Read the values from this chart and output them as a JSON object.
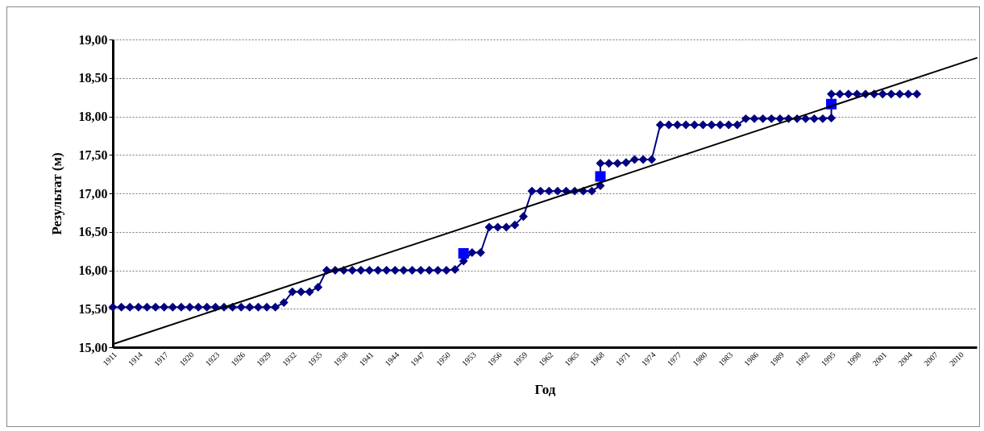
{
  "chart_data": {
    "type": "line",
    "xlabel": "Год",
    "ylabel": "Результат (м)",
    "xlim": [
      1911,
      2012
    ],
    "xticks": [
      1911,
      1914,
      1917,
      1920,
      1923,
      1926,
      1929,
      1932,
      1935,
      1938,
      1941,
      1944,
      1947,
      1950,
      1953,
      1956,
      1959,
      1962,
      1965,
      1968,
      1971,
      1974,
      1977,
      1980,
      1983,
      1986,
      1989,
      1992,
      1995,
      1998,
      2001,
      2004,
      2007,
      2010
    ],
    "ylim": [
      15,
      19
    ],
    "yticks": [
      {
        "value": 15,
        "label": "15,00"
      },
      {
        "value": 15.5,
        "label": "15,50"
      },
      {
        "value": 16,
        "label": "16,00"
      },
      {
        "value": 16.5,
        "label": "16,50"
      },
      {
        "value": 17,
        "label": "17,00"
      },
      {
        "value": 17.5,
        "label": "17,50"
      },
      {
        "value": 18,
        "label": "18,00"
      },
      {
        "value": 18.5,
        "label": "18,50"
      },
      {
        "value": 19,
        "label": "19,00"
      }
    ],
    "grid": "y",
    "series": [
      {
        "type": "line",
        "marker": "diamond",
        "color": "#000080",
        "x": [
          1911,
          1912,
          1913,
          1914,
          1915,
          1916,
          1917,
          1918,
          1919,
          1920,
          1921,
          1922,
          1923,
          1924,
          1925,
          1926,
          1927,
          1928,
          1929,
          1930,
          1931,
          1932,
          1933,
          1934,
          1935,
          1936,
          1937,
          1938,
          1939,
          1940,
          1941,
          1942,
          1943,
          1944,
          1945,
          1946,
          1947,
          1948,
          1949,
          1950,
          1951,
          1952,
          1953,
          1954,
          1955,
          1956,
          1957,
          1958,
          1959,
          1960,
          1961,
          1962,
          1963,
          1964,
          1965,
          1966,
          1967,
          1968,
          1968,
          1969,
          1970,
          1971,
          1972,
          1973,
          1974,
          1975,
          1976,
          1977,
          1978,
          1979,
          1980,
          1981,
          1982,
          1983,
          1984,
          1985,
          1986,
          1987,
          1988,
          1989,
          1990,
          1991,
          1992,
          1993,
          1994,
          1995,
          1995,
          1996,
          1997,
          1998,
          1999,
          2000,
          2001,
          2002,
          2003,
          2004,
          2005
        ],
        "values": [
          15.52,
          15.52,
          15.52,
          15.52,
          15.52,
          15.52,
          15.52,
          15.52,
          15.52,
          15.52,
          15.52,
          15.52,
          15.52,
          15.52,
          15.52,
          15.52,
          15.52,
          15.52,
          15.52,
          15.52,
          15.58,
          15.72,
          15.72,
          15.72,
          15.78,
          16.0,
          16.0,
          16.0,
          16.0,
          16.0,
          16.0,
          16.0,
          16.0,
          16.0,
          16.0,
          16.0,
          16.0,
          16.0,
          16.0,
          16.0,
          16.01,
          16.12,
          16.23,
          16.23,
          16.56,
          16.56,
          16.56,
          16.59,
          16.7,
          17.03,
          17.03,
          17.03,
          17.03,
          17.03,
          17.03,
          17.03,
          17.03,
          17.1,
          17.39,
          17.39,
          17.39,
          17.4,
          17.44,
          17.44,
          17.44,
          17.89,
          17.89,
          17.89,
          17.89,
          17.89,
          17.89,
          17.89,
          17.89,
          17.89,
          17.89,
          17.97,
          17.97,
          17.97,
          17.97,
          17.97,
          17.97,
          17.97,
          17.97,
          17.97,
          17.97,
          17.98,
          18.29,
          18.29,
          18.29,
          18.29,
          18.29,
          18.29,
          18.29,
          18.29,
          18.29,
          18.29,
          18.29
        ]
      },
      {
        "type": "scatter",
        "marker": "square",
        "color": "#0000ff",
        "x": [
          1952,
          1968,
          1995
        ],
        "values": [
          16.22,
          17.22,
          18.16
        ]
      },
      {
        "type": "line",
        "marker": "none",
        "color": "#000000",
        "x": [
          1911,
          2012
        ],
        "values": [
          15.04,
          18.76
        ]
      }
    ]
  }
}
